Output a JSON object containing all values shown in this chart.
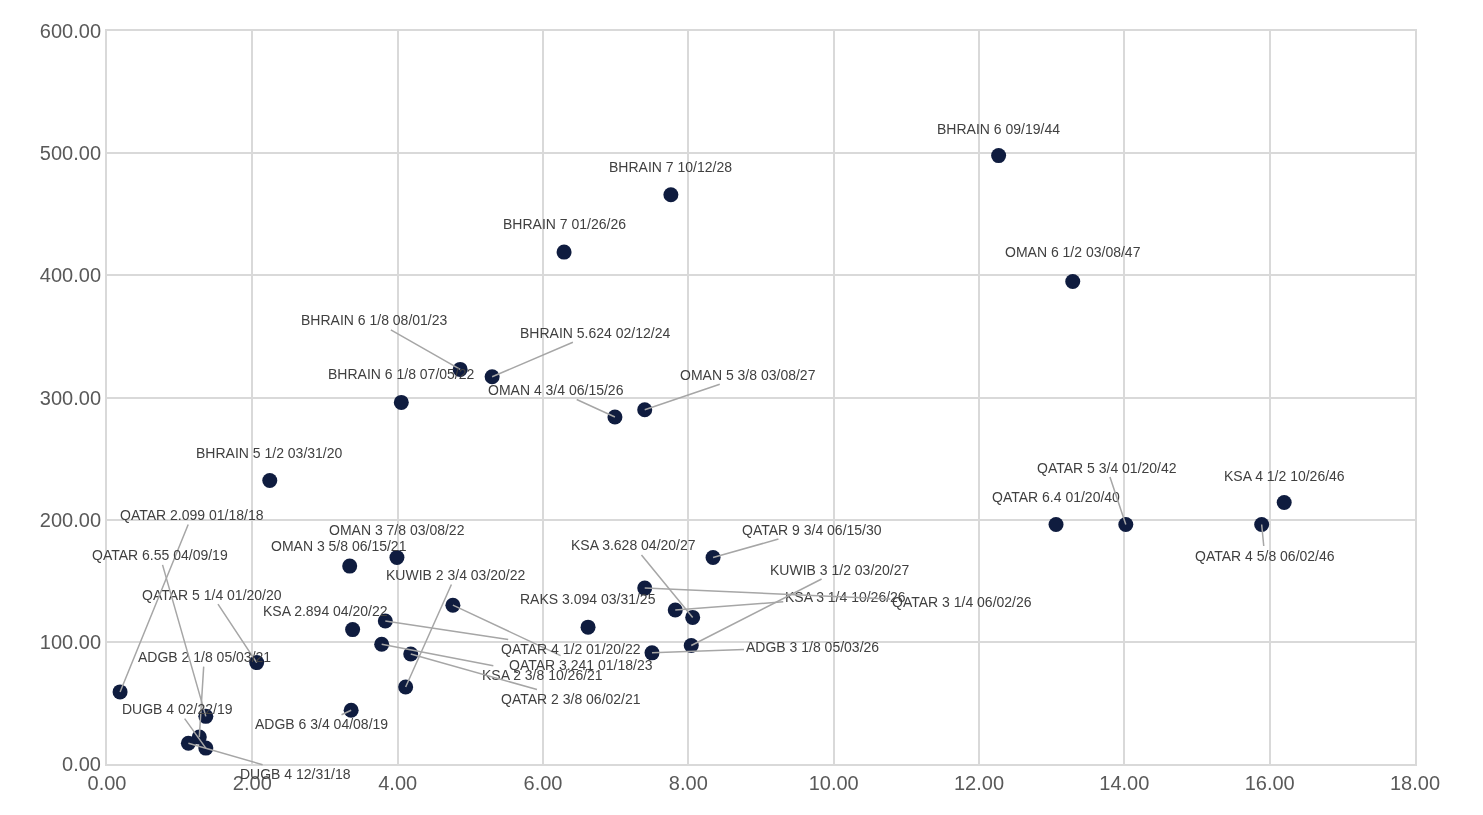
{
  "chart_data": {
    "type": "scatter",
    "marker": "circle",
    "color": "#0f1c3f",
    "grid": true,
    "xlim": [
      0,
      18
    ],
    "xticks": [
      {
        "value": 0,
        "label": "0.00"
      },
      {
        "value": 2,
        "label": "2.00"
      },
      {
        "value": 4,
        "label": "4.00"
      },
      {
        "value": 6,
        "label": "6.00"
      },
      {
        "value": 8,
        "label": "8.00"
      },
      {
        "value": 10,
        "label": "10.00"
      },
      {
        "value": 12,
        "label": "12.00"
      },
      {
        "value": 14,
        "label": "14.00"
      },
      {
        "value": 16,
        "label": "16.00"
      },
      {
        "value": 18,
        "label": "18.00"
      }
    ],
    "ylim": [
      0,
      600
    ],
    "yticks": [
      {
        "value": 0,
        "label": "0.00"
      },
      {
        "value": 100,
        "label": "100.00"
      },
      {
        "value": 200,
        "label": "200.00"
      },
      {
        "value": 300,
        "label": "300.00"
      },
      {
        "value": 400,
        "label": "400.00"
      },
      {
        "value": 500,
        "label": "500.00"
      },
      {
        "value": 600,
        "label": "600.00"
      }
    ],
    "x": [
      12.27,
      7.76,
      6.29,
      13.29,
      4.86,
      5.3,
      4.05,
      6.99,
      7.4,
      2.24,
      13.06,
      14.02,
      16.2,
      15.89,
      8.34,
      8.06,
      7.82,
      7.4,
      8.04,
      7.5,
      6.62,
      4.11,
      4.76,
      3.83,
      3.38,
      3.78,
      4.18,
      3.99,
      3.34,
      2.06,
      3.36,
      1.27,
      0.18,
      1.36,
      1.36,
      1.12
    ],
    "values": [
      498,
      466,
      419,
      395,
      323,
      317,
      296,
      284,
      290,
      232,
      196,
      196,
      214,
      196,
      169,
      120,
      126,
      144,
      97,
      91,
      112,
      63,
      130,
      117,
      110,
      98,
      90,
      169,
      162,
      83,
      44,
      22,
      59,
      39,
      13,
      17
    ],
    "annotations": [
      {
        "text": "BHRAIN 6 09/19/44",
        "x": 12.27,
        "y": 498
      },
      {
        "text": "BHRAIN 7 10/12/28",
        "x": 7.76,
        "y": 466
      },
      {
        "text": "BHRAIN 7 01/26/26",
        "x": 6.29,
        "y": 419
      },
      {
        "text": "OMAN 6 1/2 03/08/47",
        "x": 13.29,
        "y": 395
      },
      {
        "text": "BHRAIN 6 1/8 08/01/23",
        "x": 4.86,
        "y": 323
      },
      {
        "text": "BHRAIN 5.624 02/12/24",
        "x": 5.3,
        "y": 317
      },
      {
        "text": "BHRAIN 6 1/8 07/05/22",
        "x": 4.05,
        "y": 296
      },
      {
        "text": "OMAN 4 3/4 06/15/26",
        "x": 6.99,
        "y": 284
      },
      {
        "text": "OMAN 5 3/8 03/08/27",
        "x": 7.4,
        "y": 290
      },
      {
        "text": "BHRAIN 5 1/2 03/31/20",
        "x": 2.24,
        "y": 232
      },
      {
        "text": "QATAR 6.4 01/20/40",
        "x": 13.06,
        "y": 196
      },
      {
        "text": "QATAR 5 3/4 01/20/42",
        "x": 14.02,
        "y": 196
      },
      {
        "text": "KSA 4 1/2 10/26/46",
        "x": 16.2,
        "y": 214
      },
      {
        "text": "QATAR 4 5/8 06/02/46",
        "x": 15.89,
        "y": 196
      },
      {
        "text": "QATAR 9 3/4 06/15/30",
        "x": 8.34,
        "y": 169
      },
      {
        "text": "KSA 3.628 04/20/27",
        "x": 8.06,
        "y": 120
      },
      {
        "text": "KSA 3 1/4 10/26/26",
        "x": 7.82,
        "y": 126
      },
      {
        "text": "QATAR 3 1/4 06/02/26",
        "x": 7.4,
        "y": 144
      },
      {
        "text": "KUWIB 3 1/2 03/20/27",
        "x": 8.04,
        "y": 97
      },
      {
        "text": "ADGB 3 1/8 05/03/26",
        "x": 7.5,
        "y": 91
      },
      {
        "text": "RAKS 3.094 03/31/25",
        "x": 6.62,
        "y": 112
      },
      {
        "text": "KUWIB 2 3/4 03/20/22",
        "x": 4.11,
        "y": 63
      },
      {
        "text": "QATAR 3.241 01/18/23",
        "x": 4.76,
        "y": 130
      },
      {
        "text": "QATAR 4 1/2 01/20/22",
        "x": 3.83,
        "y": 117
      },
      {
        "text": "KSA 2.894 04/20/22",
        "x": 3.38,
        "y": 110
      },
      {
        "text": "KSA 2 3/8 10/26/21",
        "x": 3.78,
        "y": 98
      },
      {
        "text": "QATAR 2 3/8 06/02/21",
        "x": 4.18,
        "y": 90
      },
      {
        "text": "OMAN 3 7/8 03/08/22",
        "x": 3.99,
        "y": 169
      },
      {
        "text": "OMAN 3 5/8 06/15/21",
        "x": 3.34,
        "y": 162
      },
      {
        "text": "QATAR 5 1/4 01/20/20",
        "x": 2.06,
        "y": 83
      },
      {
        "text": "ADGB 2 1/8 05/03/21",
        "x": 1.27,
        "y": 22
      },
      {
        "text": "ADGB 6 3/4 04/08/19",
        "x": 3.36,
        "y": 44
      },
      {
        "text": "QATAR 2.099 01/18/18",
        "x": 0.18,
        "y": 59
      },
      {
        "text": "QATAR 6.55 04/09/19",
        "x": 1.36,
        "y": 39
      },
      {
        "text": "DUGB 4 02/22/19",
        "x": 1.36,
        "y": 13
      },
      {
        "text": "DUGB 4 12/31/18",
        "x": 1.12,
        "y": 17
      }
    ]
  }
}
